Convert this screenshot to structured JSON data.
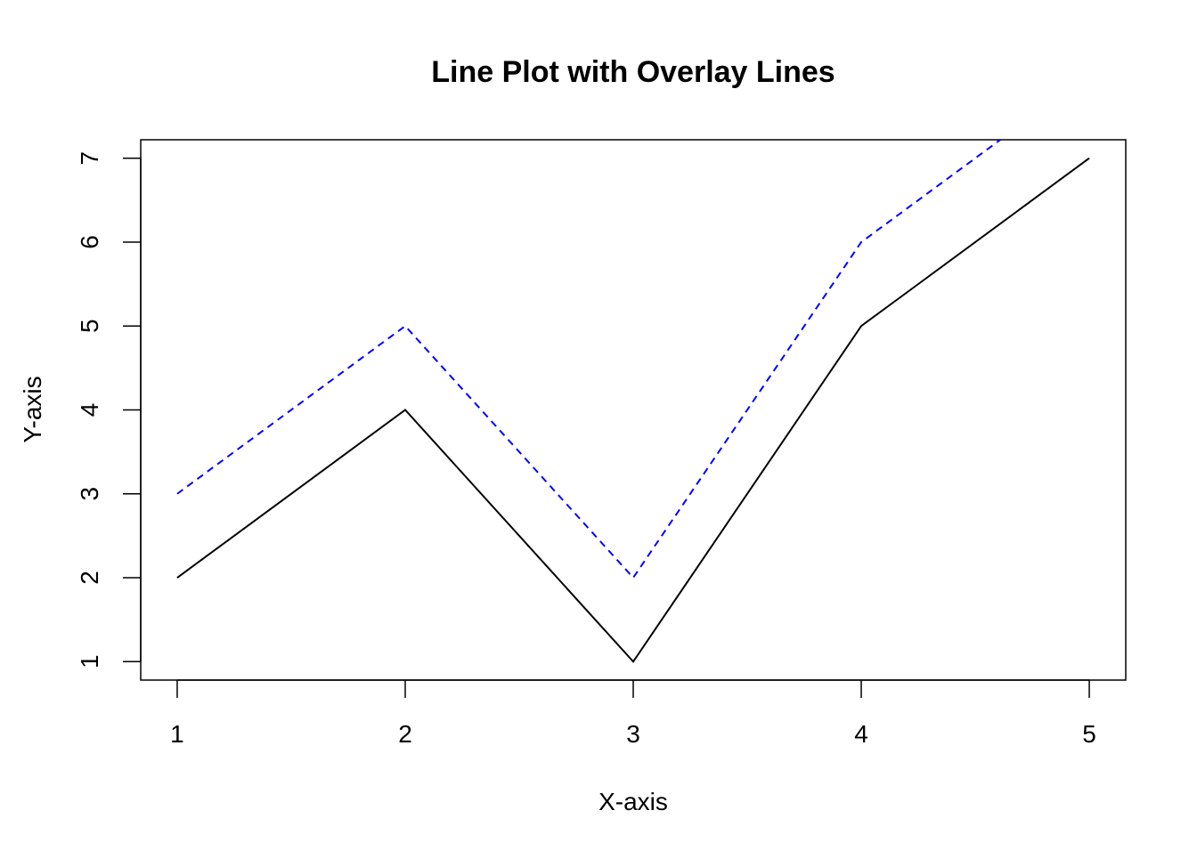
{
  "chart_data": {
    "type": "line",
    "title": "Line Plot with Overlay Lines",
    "xlabel": "X-axis",
    "ylabel": "Y-axis",
    "x": [
      1,
      2,
      3,
      4,
      5
    ],
    "xlim": [
      0.84,
      5.16
    ],
    "ylim": [
      0.78,
      7.22
    ],
    "x_ticks": [
      "1",
      "2",
      "3",
      "4",
      "5"
    ],
    "y_ticks": [
      "1",
      "2",
      "3",
      "4",
      "5",
      "6",
      "7"
    ],
    "grid": false,
    "legend": "none",
    "series": [
      {
        "values": [
          2,
          4,
          1,
          5,
          7
        ],
        "color": "#000000",
        "line_style": "solid"
      },
      {
        "values": [
          3,
          5,
          2,
          6,
          8
        ],
        "color": "#0000FF",
        "line_style": "dashed"
      }
    ]
  }
}
